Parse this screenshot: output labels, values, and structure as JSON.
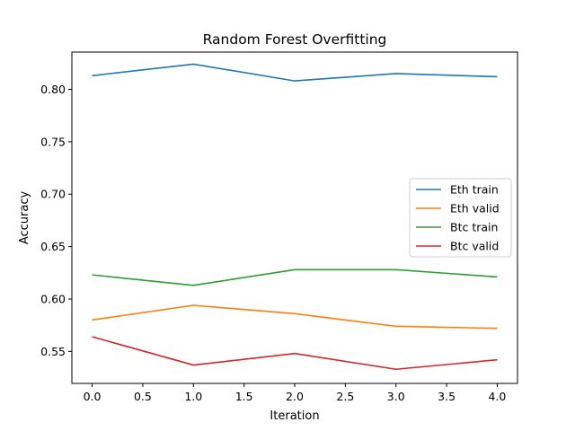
{
  "chart_data": {
    "type": "line",
    "title": "Random Forest Overfitting",
    "xlabel": "Iteration",
    "ylabel": "Accuracy",
    "x": [
      0,
      1,
      2,
      3,
      4
    ],
    "xlim": [
      -0.2,
      4.2
    ],
    "ylim": [
      0.5195,
      0.8355
    ],
    "xticks": [
      0.0,
      0.5,
      1.0,
      1.5,
      2.0,
      2.5,
      3.0,
      3.5,
      4.0
    ],
    "xtick_labels": [
      "0.0",
      "0.5",
      "1.0",
      "1.5",
      "2.0",
      "2.5",
      "3.0",
      "3.5",
      "4.0"
    ],
    "yticks": [
      0.55,
      0.6,
      0.65,
      0.7,
      0.75,
      0.8
    ],
    "ytick_labels": [
      "0.55",
      "0.60",
      "0.65",
      "0.70",
      "0.75",
      "0.80"
    ],
    "grid": false,
    "legend_position": "center-right",
    "series": [
      {
        "name": "Eth train",
        "color": "#1f77b4",
        "values": [
          0.813,
          0.824,
          0.808,
          0.815,
          0.812
        ]
      },
      {
        "name": "Eth valid",
        "color": "#ff7f0e",
        "values": [
          0.58,
          0.594,
          0.586,
          0.574,
          0.572
        ]
      },
      {
        "name": "Btc train",
        "color": "#2ca02c",
        "values": [
          0.623,
          0.613,
          0.628,
          0.628,
          0.621
        ]
      },
      {
        "name": "Btc valid",
        "color": "#d62728",
        "values": [
          0.564,
          0.537,
          0.548,
          0.533,
          0.542
        ]
      }
    ]
  }
}
